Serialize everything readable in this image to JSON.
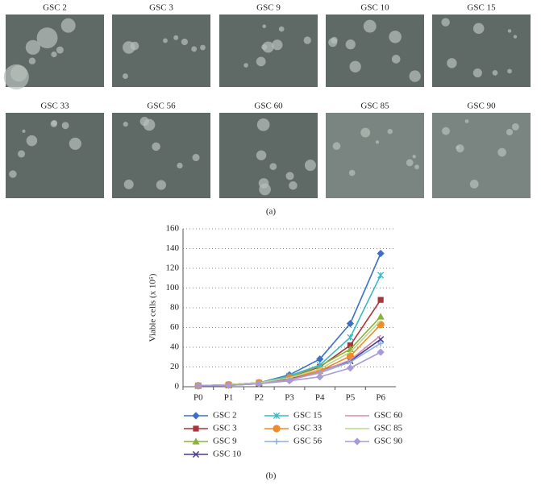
{
  "panel_a": {
    "labels": [
      "GSC 2",
      "GSC 3",
      "GSC 9",
      "GSC 10",
      "GSC 15",
      "GSC 33",
      "GSC 56",
      "GSC 60",
      "GSC 85",
      "GSC 90"
    ],
    "caption": "(a)"
  },
  "chart_data": {
    "type": "line",
    "y_label": "Viable cells (x 10⁵)",
    "categories": [
      "P0",
      "P1",
      "P2",
      "P3",
      "P4",
      "P5",
      "P6"
    ],
    "ylim": [
      0,
      160
    ],
    "yticks": [
      0,
      20,
      40,
      60,
      80,
      100,
      120,
      140,
      160
    ],
    "grid": true,
    "series": [
      {
        "name": "GSC 2",
        "color": "#3b6fc8",
        "marker": "diamond",
        "values": [
          1,
          2,
          4,
          12,
          28,
          64,
          135
        ]
      },
      {
        "name": "GSC 3",
        "color": "#a8343a",
        "marker": "square",
        "values": [
          1,
          2,
          4,
          10,
          20,
          42,
          88
        ]
      },
      {
        "name": "GSC 9",
        "color": "#8ab23a",
        "marker": "triangle",
        "values": [
          1,
          2,
          4,
          10,
          21,
          38,
          71
        ]
      },
      {
        "name": "GSC 10",
        "color": "#4a3a94",
        "marker": "x",
        "values": [
          1,
          1.5,
          3,
          8,
          16,
          26,
          48
        ]
      },
      {
        "name": "GSC 15",
        "color": "#3bb8c8",
        "marker": "star",
        "values": [
          1,
          2,
          4,
          11,
          22,
          50,
          113
        ]
      },
      {
        "name": "GSC 33",
        "color": "#f08a2a",
        "marker": "circle",
        "values": [
          1,
          2,
          4,
          9,
          16,
          31,
          63
        ]
      },
      {
        "name": "GSC 56",
        "color": "#8ab0e0",
        "marker": "plus",
        "values": [
          1,
          1.5,
          3,
          7,
          14,
          25,
          44
        ]
      },
      {
        "name": "GSC 60",
        "color": "#d48ab0",
        "marker": "none",
        "values": [
          1,
          1.5,
          3,
          7,
          15,
          27,
          52
        ]
      },
      {
        "name": "GSC 85",
        "color": "#b8d88a",
        "marker": "none",
        "values": [
          1,
          2,
          4,
          9,
          18,
          35,
          67
        ]
      },
      {
        "name": "GSC 90",
        "color": "#a89ad8",
        "marker": "diamond",
        "values": [
          1,
          1.5,
          3,
          6,
          10,
          19,
          35
        ]
      }
    ]
  },
  "caption_b": "(b)"
}
